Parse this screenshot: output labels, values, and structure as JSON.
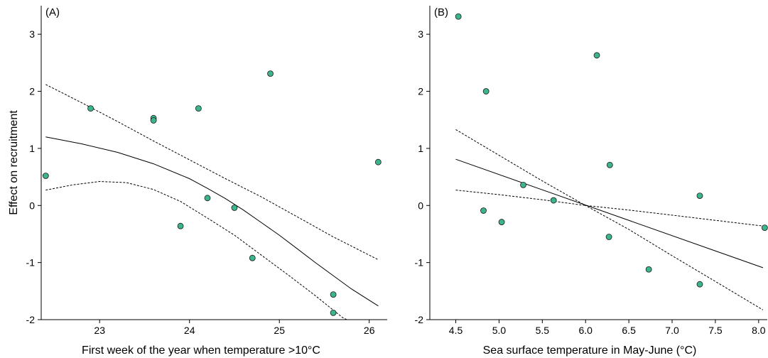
{
  "chart_data": [
    {
      "type": "scatter",
      "panel_label": "(A)",
      "xlabel": "First week of the year when temperature >10°C",
      "ylabel": "Effect on recruitment",
      "xlim": [
        22.35,
        26.2
      ],
      "ylim": [
        -2,
        3.5
      ],
      "xticks": [
        "23",
        "24",
        "25",
        "26"
      ],
      "yticks": [
        "-2",
        "-1",
        "0",
        "1",
        "2",
        "3"
      ],
      "point_color": "#3cb48c",
      "points": [
        {
          "x": 22.4,
          "y": 0.52
        },
        {
          "x": 22.9,
          "y": 1.7
        },
        {
          "x": 23.6,
          "y": 1.53
        },
        {
          "x": 23.6,
          "y": 1.49
        },
        {
          "x": 23.9,
          "y": -0.36
        },
        {
          "x": 24.1,
          "y": 1.7
        },
        {
          "x": 24.2,
          "y": 0.13
        },
        {
          "x": 24.5,
          "y": -0.04
        },
        {
          "x": 24.7,
          "y": -0.92
        },
        {
          "x": 24.9,
          "y": 2.31
        },
        {
          "x": 25.6,
          "y": -1.56
        },
        {
          "x": 25.6,
          "y": -1.88
        },
        {
          "x": 26.1,
          "y": 0.76
        }
      ],
      "fit_line": {
        "x": [
          22.4,
          22.8,
          23.2,
          23.6,
          24.0,
          24.2,
          24.4,
          24.6,
          24.8,
          25.0,
          25.2,
          25.4,
          25.6,
          25.8,
          26.1
        ],
        "y": [
          1.2,
          1.08,
          0.93,
          0.73,
          0.47,
          0.3,
          0.12,
          -0.08,
          -0.3,
          -0.52,
          -0.76,
          -1.0,
          -1.23,
          -1.46,
          -1.76
        ]
      },
      "ci_upper": {
        "x": [
          22.4,
          22.8,
          23.2,
          23.6,
          24.0,
          24.4,
          24.8,
          25.2,
          25.6,
          26.1
        ],
        "y": [
          2.12,
          1.8,
          1.47,
          1.13,
          0.8,
          0.47,
          0.15,
          -0.2,
          -0.55,
          -0.95
        ]
      },
      "ci_lower": {
        "x": [
          22.4,
          22.7,
          23.0,
          23.3,
          23.6,
          23.9,
          24.2,
          24.5,
          24.8,
          25.1,
          25.4,
          25.7,
          25.75
        ],
        "y": [
          0.27,
          0.36,
          0.42,
          0.4,
          0.28,
          0.07,
          -0.22,
          -0.52,
          -0.87,
          -1.22,
          -1.58,
          -1.96,
          -2.0
        ]
      }
    },
    {
      "type": "scatter",
      "panel_label": "(B)",
      "xlabel": "Sea surface temperature in May-June (°C)",
      "ylabel": "",
      "xlim": [
        4.2,
        8.1
      ],
      "ylim": [
        -2,
        3.5
      ],
      "xticks": [
        "4.5",
        "5.0",
        "5.5",
        "6.0",
        "6.5",
        "7.0",
        "7.5",
        "8.0"
      ],
      "yticks": [
        "-2",
        "-1",
        "0",
        "1",
        "2",
        "3"
      ],
      "point_color": "#3cb48c",
      "points": [
        {
          "x": 4.53,
          "y": 3.31
        },
        {
          "x": 4.82,
          "y": -0.09
        },
        {
          "x": 4.85,
          "y": 2.0
        },
        {
          "x": 5.03,
          "y": -0.29
        },
        {
          "x": 5.28,
          "y": 0.36
        },
        {
          "x": 5.63,
          "y": 0.09
        },
        {
          "x": 6.13,
          "y": 2.63
        },
        {
          "x": 6.27,
          "y": -0.55
        },
        {
          "x": 6.28,
          "y": 0.71
        },
        {
          "x": 6.73,
          "y": -1.12
        },
        {
          "x": 7.32,
          "y": 0.17
        },
        {
          "x": 7.32,
          "y": -1.38
        },
        {
          "x": 8.07,
          "y": -0.39
        }
      ],
      "fit_line": {
        "x": [
          4.5,
          8.05
        ],
        "y": [
          0.81,
          -1.09
        ]
      },
      "ci_upper": {
        "x": [
          4.5,
          5.0,
          5.5,
          6.0,
          6.5,
          7.0,
          7.5,
          8.05
        ],
        "y": [
          0.27,
          0.19,
          0.1,
          0.0,
          -0.08,
          -0.17,
          -0.26,
          -0.36
        ]
      },
      "ci_lower": {
        "x": [
          4.5,
          5.0,
          5.5,
          6.0,
          6.5,
          7.0,
          7.5,
          8.05
        ],
        "y": [
          1.33,
          0.88,
          0.43,
          0.0,
          -0.42,
          -0.88,
          -1.33,
          -1.83
        ]
      }
    }
  ]
}
